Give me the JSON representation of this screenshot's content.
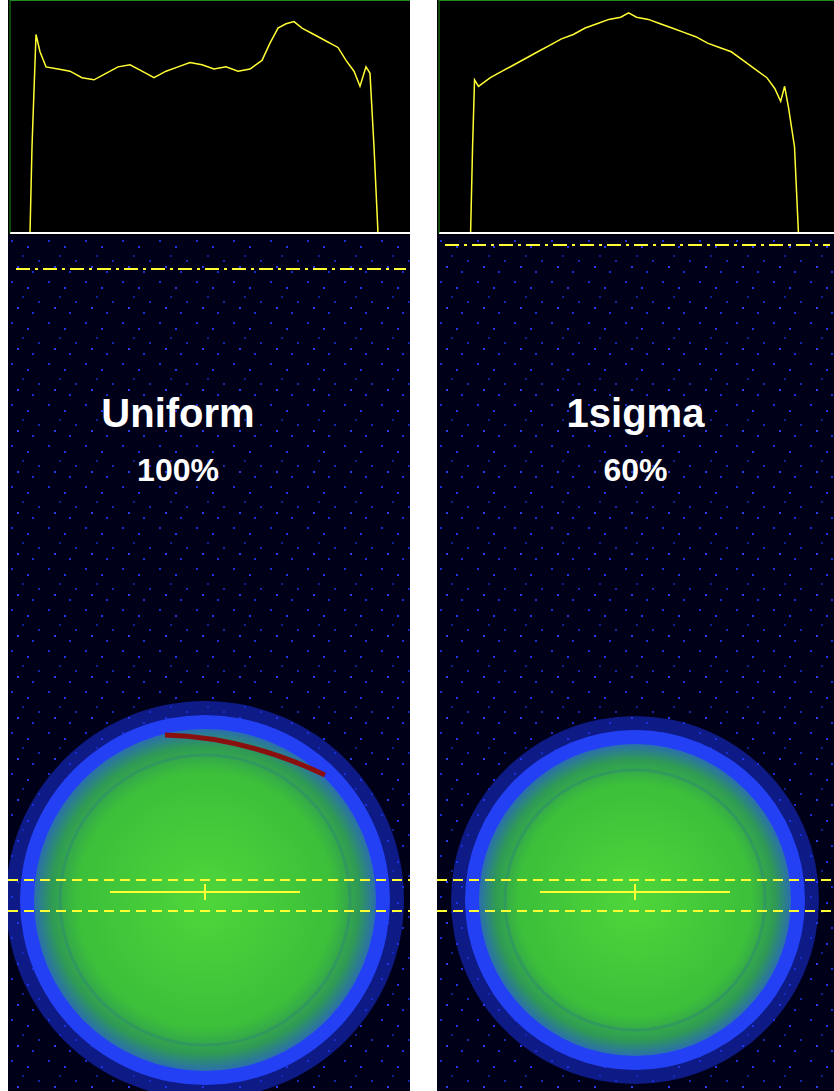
{
  "chart_data": [
    {
      "type": "line",
      "title": "Uniform",
      "subtitle": "100%",
      "color": "#ffff33",
      "grid": true,
      "tick_labels": false,
      "xlim": [
        0,
        100
      ],
      "ylim": [
        0,
        5.4
      ],
      "yticks": [
        0,
        1,
        2,
        3,
        4,
        5
      ],
      "x": [
        0,
        5,
        5.5,
        6.5,
        7.5,
        9,
        12,
        15,
        18,
        21,
        24,
        27,
        30,
        33,
        36,
        39,
        42,
        45,
        48,
        51,
        54,
        57,
        60,
        63,
        65,
        67,
        69,
        71,
        73,
        76,
        79,
        82,
        84,
        86,
        87.5,
        89,
        90,
        91,
        92,
        100
      ],
      "values": [
        0,
        0,
        2,
        4.6,
        4.2,
        3.85,
        3.8,
        3.75,
        3.6,
        3.55,
        3.7,
        3.85,
        3.9,
        3.75,
        3.6,
        3.75,
        3.85,
        3.95,
        3.9,
        3.8,
        3.85,
        3.75,
        3.8,
        4.0,
        4.4,
        4.75,
        4.85,
        4.9,
        4.75,
        4.6,
        4.45,
        4.3,
        4.0,
        3.75,
        3.4,
        3.85,
        3.7,
        2,
        0,
        0
      ]
    },
    {
      "type": "line",
      "title": "1sigma",
      "subtitle": "60%",
      "color": "#ffff33",
      "grid": true,
      "tick_labels": false,
      "xlim": [
        0,
        100
      ],
      "ylim": [
        0,
        5.4
      ],
      "yticks": [
        0,
        1,
        2,
        3,
        4,
        5
      ],
      "x": [
        0,
        8,
        8.5,
        9,
        10,
        13,
        16,
        19,
        22,
        25,
        28,
        31,
        34,
        37,
        40,
        43,
        46,
        48,
        50,
        53,
        56,
        59,
        62,
        65,
        68,
        71,
        74,
        77,
        80,
        83,
        85,
        86.5,
        87.5,
        88.5,
        90,
        91,
        100
      ],
      "values": [
        0,
        0,
        2,
        3.55,
        3.4,
        3.6,
        3.75,
        3.9,
        4.05,
        4.2,
        4.35,
        4.5,
        4.6,
        4.75,
        4.85,
        4.95,
        5.0,
        5.1,
        5.0,
        4.95,
        4.85,
        4.75,
        4.65,
        4.55,
        4.4,
        4.3,
        4.2,
        4.0,
        3.8,
        3.6,
        3.35,
        3.05,
        3.4,
        2.9,
        2.0,
        0,
        0
      ]
    }
  ]
}
